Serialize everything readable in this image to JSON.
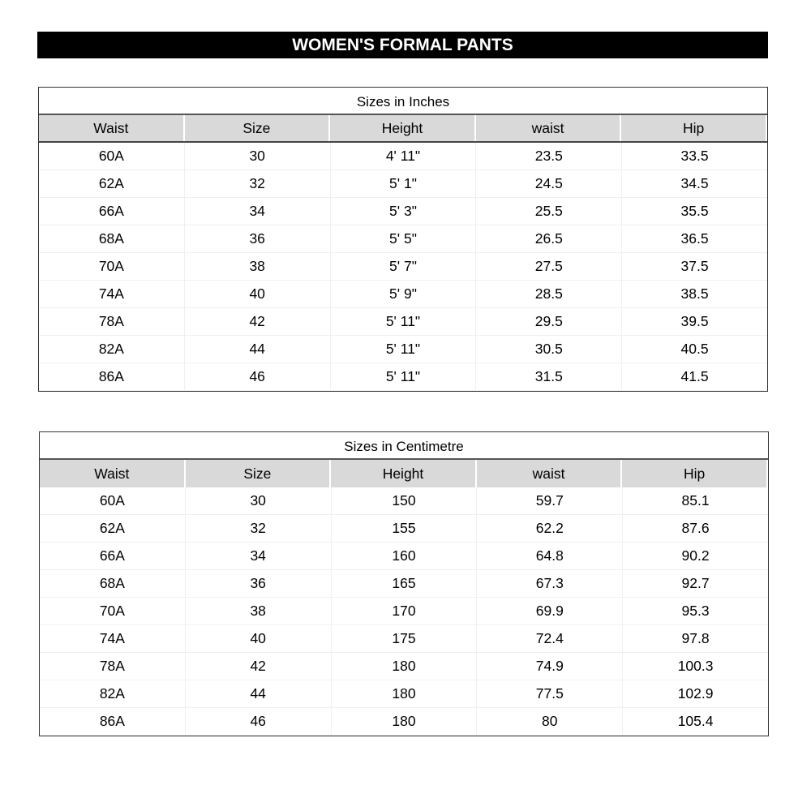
{
  "title": "WOMEN'S FORMAL PANTS",
  "tables": [
    {
      "caption": "Sizes in Inches",
      "headers": [
        "Waist",
        "Size",
        "Height",
        "waist",
        "Hip"
      ],
      "rows": [
        [
          "60A",
          "30",
          "4' 11\"",
          "23.5",
          "33.5"
        ],
        [
          "62A",
          "32",
          "5' 1\"",
          "24.5",
          "34.5"
        ],
        [
          "66A",
          "34",
          "5' 3\"",
          "25.5",
          "35.5"
        ],
        [
          "68A",
          "36",
          "5' 5\"",
          "26.5",
          "36.5"
        ],
        [
          "70A",
          "38",
          "5' 7\"",
          "27.5",
          "37.5"
        ],
        [
          "74A",
          "40",
          "5' 9\"",
          "28.5",
          "38.5"
        ],
        [
          "78A",
          "42",
          "5' 11\"",
          "29.5",
          "39.5"
        ],
        [
          "82A",
          "44",
          "5' 11\"",
          "30.5",
          "40.5"
        ],
        [
          "86A",
          "46",
          "5' 11\"",
          "31.5",
          "41.5"
        ]
      ]
    },
    {
      "caption": "Sizes in Centimetre",
      "headers": [
        "Waist",
        "Size",
        "Height",
        "waist",
        "Hip"
      ],
      "rows": [
        [
          "60A",
          "30",
          "150",
          "59.7",
          "85.1"
        ],
        [
          "62A",
          "32",
          "155",
          "62.2",
          "87.6"
        ],
        [
          "66A",
          "34",
          "160",
          "64.8",
          "90.2"
        ],
        [
          "68A",
          "36",
          "165",
          "67.3",
          "92.7"
        ],
        [
          "70A",
          "38",
          "170",
          "69.9",
          "95.3"
        ],
        [
          "74A",
          "40",
          "175",
          "72.4",
          "97.8"
        ],
        [
          "78A",
          "42",
          "180",
          "74.9",
          "100.3"
        ],
        [
          "82A",
          "44",
          "180",
          "77.5",
          "102.9"
        ],
        [
          "86A",
          "46",
          "180",
          "80",
          "105.4"
        ]
      ]
    }
  ]
}
